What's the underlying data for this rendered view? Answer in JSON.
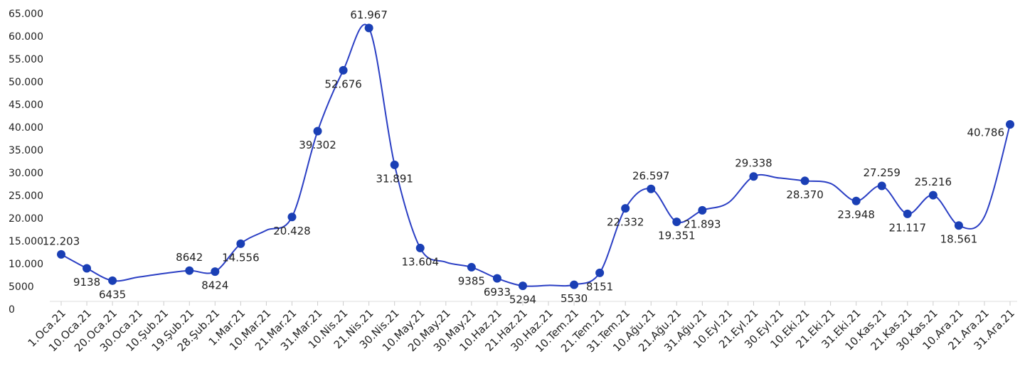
{
  "chart_data": {
    "type": "line",
    "categories": [
      "1.Oca.21",
      "10.Oca.21",
      "20.Oca.21",
      "30.Oca.21",
      "10.Şub.21",
      "19.Şub.21",
      "28.Şub.21",
      "1.Mar.21",
      "10.Mar.21",
      "21.Mar.21",
      "31.Mar.21",
      "10.Nis.21",
      "21.Nis.21",
      "30.Nis.21",
      "10.May.21",
      "20.May.21",
      "30.May.21",
      "10.Haz.21",
      "21.Haz.21",
      "30.Haz.21",
      "10.Tem.21",
      "21.Tem.21",
      "31.Tem.21",
      "10.Ağu.21",
      "21.Ağu.21",
      "31.Ağu.21",
      "10.Eyl.21",
      "21.Eyl.21",
      "30.Eyl.21",
      "10.Eki.21",
      "21.Eki.21",
      "31.Eki.21",
      "10.Kas.21",
      "21.Kas.21",
      "30.Kas.21",
      "10.Ara.21",
      "21.Ara.21",
      "31.Ara.21"
    ],
    "values": [
      12203,
      9138,
      6435,
      7200,
      8000,
      8642,
      8424,
      14556,
      17500,
      20428,
      39302,
      52676,
      61967,
      31891,
      13604,
      10500,
      9385,
      6933,
      5294,
      5400,
      5530,
      8151,
      22332,
      26597,
      19351,
      21893,
      23500,
      29338,
      29000,
      28370,
      27800,
      23948,
      27259,
      21117,
      25216,
      18561,
      20500,
      40786
    ],
    "value_labels": [
      "12.203",
      "9138",
      "6435",
      null,
      null,
      "8642",
      "8424",
      "14.556",
      null,
      "20.428",
      "39.302",
      "52.676",
      "61.967",
      "31.891",
      "13.604",
      null,
      "9385",
      "6933",
      "5294",
      null,
      "5530",
      "8151",
      "22.332",
      "26.597",
      "19.351",
      "21.893",
      null,
      "29.338",
      null,
      "28.370",
      null,
      "23.948",
      "27.259",
      "21.117",
      "25.216",
      "18.561",
      null,
      "40.786"
    ],
    "color": "#2b3fc4",
    "marker_color": "#1a3fb5",
    "ylim": [
      0,
      65000
    ],
    "yticks": [
      0,
      5000,
      {
        "value": 10000,
        "label": "10.000"
      },
      {
        "value": 15000,
        "label": "15.000"
      },
      {
        "value": 20000,
        "label": "20.000"
      },
      {
        "value": 25000,
        "label": "25.000"
      },
      {
        "value": 30000,
        "label": "30.000"
      },
      {
        "value": 35000,
        "label": "35.000"
      },
      {
        "value": 40000,
        "label": "40.000"
      },
      {
        "value": 45000,
        "label": "45.000"
      },
      {
        "value": 50000,
        "label": "50.000"
      },
      {
        "value": 55000,
        "label": "55.000"
      },
      {
        "value": 60000,
        "label": "60.000"
      },
      {
        "value": 65000,
        "label": "65.000"
      }
    ],
    "grid": false
  }
}
